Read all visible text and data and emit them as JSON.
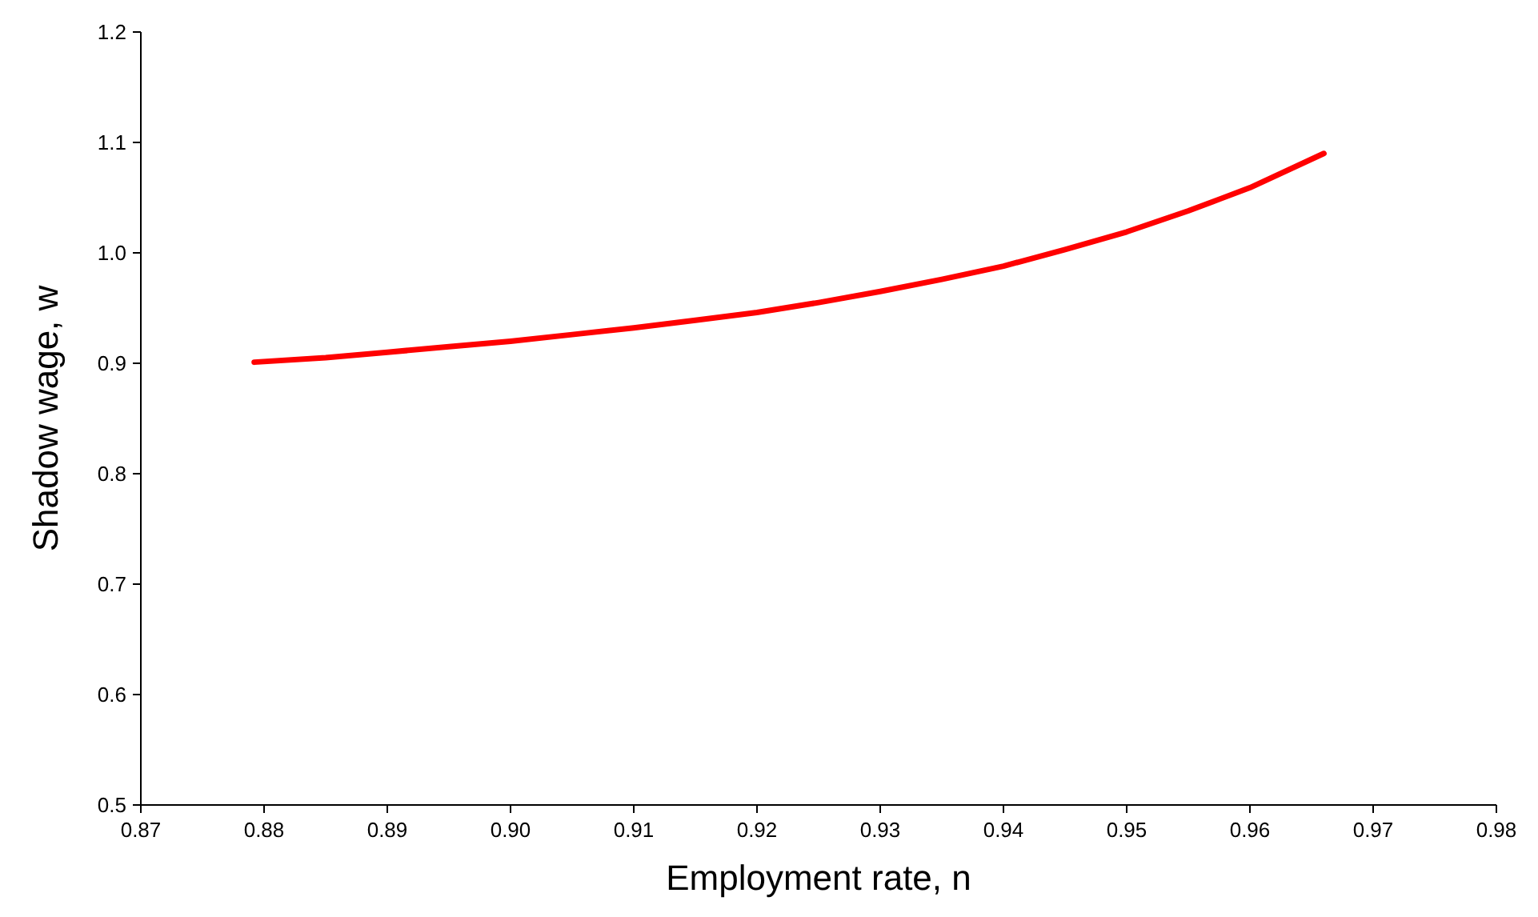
{
  "chart_data": {
    "type": "line",
    "xlabel": "Employment rate, n",
    "ylabel": "Shadow wage, w",
    "xlim": [
      0.87,
      0.98
    ],
    "xticks": [
      0.87,
      0.88,
      0.89,
      {
        "value": 0.9,
        "label": "0.90"
      },
      0.91,
      0.92,
      0.93,
      0.94,
      0.95,
      0.96,
      0.97,
      0.98
    ],
    "ylim": [
      0.5,
      1.2
    ],
    "yticks": [
      0.5,
      0.6,
      0.7,
      0.8,
      0.9,
      {
        "value": 1.0,
        "label": "1.0"
      },
      1.1,
      1.2
    ],
    "grid": false,
    "marker": "none",
    "line_style": "solid",
    "series": [
      {
        "color": "#ff0000",
        "x": [
          0.8792,
          0.885,
          0.89,
          0.895,
          0.9,
          0.905,
          0.91,
          0.915,
          0.92,
          0.925,
          0.93,
          0.935,
          0.94,
          0.945,
          0.95,
          0.955,
          0.96,
          0.966
        ],
        "values": [
          0.901,
          0.905,
          0.91,
          0.915,
          0.92,
          0.926,
          0.932,
          0.939,
          0.946,
          0.955,
          0.965,
          0.976,
          0.988,
          1.003,
          1.019,
          1.038,
          1.059,
          1.09
        ]
      }
    ]
  }
}
